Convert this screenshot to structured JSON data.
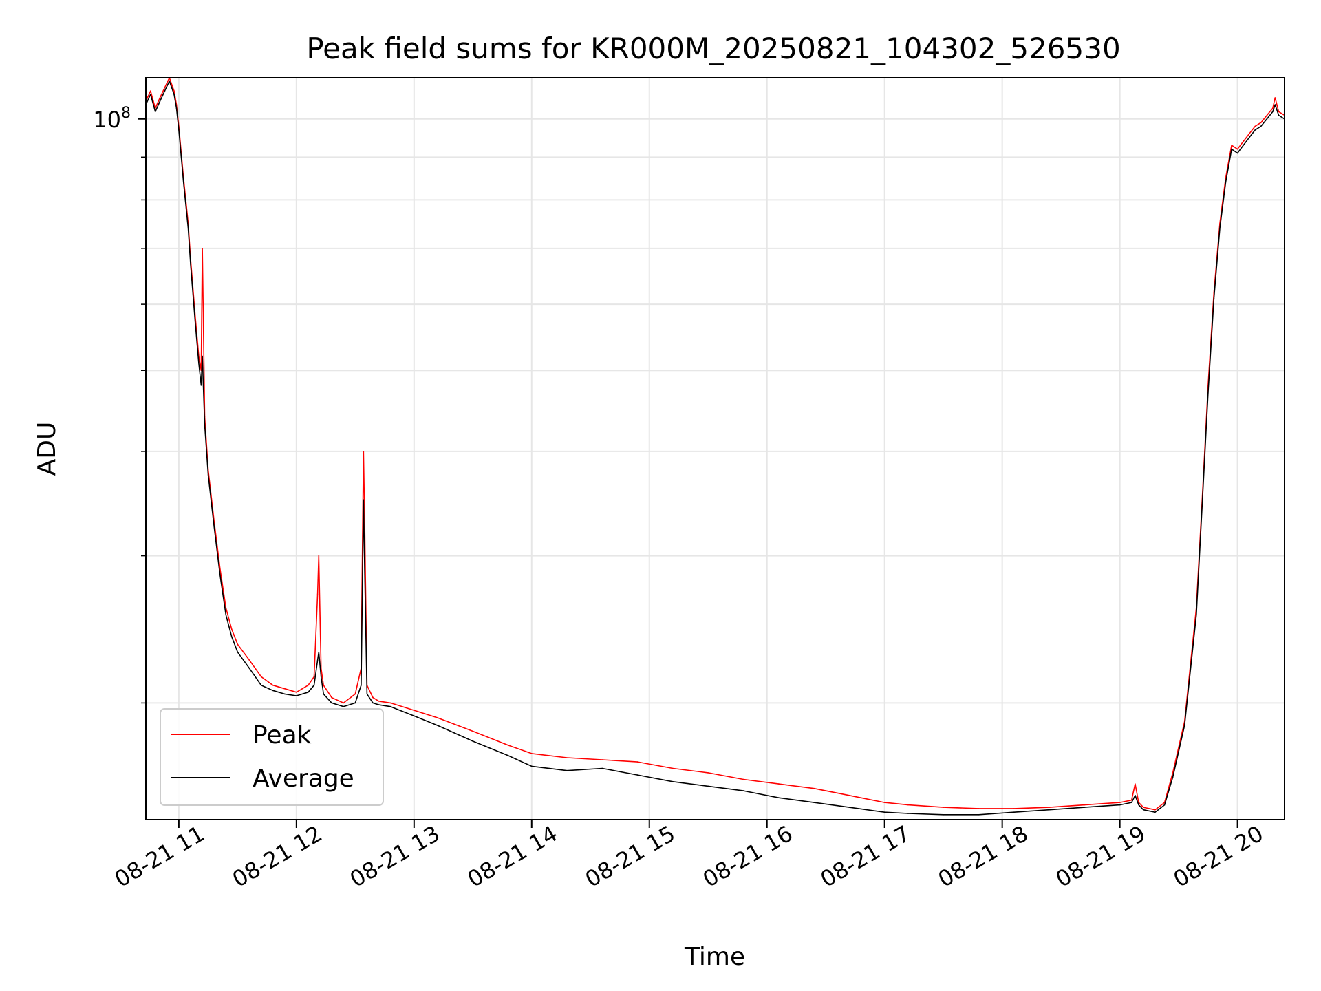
{
  "chart_data": {
    "type": "line",
    "title": "Peak field sums for KR000M_20250821_104302_526530",
    "xlabel": "Time",
    "ylabel": "ADU",
    "x_unit": "hour of 2025-08-21",
    "xlim": [
      10.72,
      20.4
    ],
    "ylim": [
      14500000,
      112000000
    ],
    "yscale": "log",
    "grid": true,
    "legend_position": "lower-left",
    "x_ticks": [
      {
        "value": 11,
        "label": "08-21 11"
      },
      {
        "value": 12,
        "label": "08-21 12"
      },
      {
        "value": 13,
        "label": "08-21 13"
      },
      {
        "value": 14,
        "label": "08-21 14"
      },
      {
        "value": 15,
        "label": "08-21 15"
      },
      {
        "value": 16,
        "label": "08-21 16"
      },
      {
        "value": 17,
        "label": "08-21 17"
      },
      {
        "value": 18,
        "label": "08-21 18"
      },
      {
        "value": 19,
        "label": "08-21 19"
      },
      {
        "value": 20,
        "label": "08-21 20"
      }
    ],
    "y_major_ticks": [
      {
        "value": 100000000,
        "label_base": "10",
        "label_exp": "8"
      }
    ],
    "y_minor_ticks": [
      20000000,
      30000000,
      40000000,
      50000000,
      60000000,
      70000000,
      80000000,
      90000000
    ],
    "series": [
      {
        "name": "Peak",
        "color": "#ff0000",
        "x": [
          10.72,
          10.76,
          10.8,
          10.84,
          10.88,
          10.92,
          10.96,
          10.98,
          11.0,
          11.04,
          11.08,
          11.1,
          11.14,
          11.17,
          11.19,
          11.2,
          11.22,
          11.25,
          11.3,
          11.35,
          11.4,
          11.45,
          11.5,
          11.55,
          11.6,
          11.65,
          11.7,
          11.8,
          11.9,
          12.0,
          12.1,
          12.15,
          12.18,
          12.19,
          12.21,
          12.23,
          12.3,
          12.4,
          12.5,
          12.55,
          12.57,
          12.58,
          12.6,
          12.65,
          12.7,
          12.8,
          13.0,
          13.2,
          13.5,
          13.8,
          14.0,
          14.3,
          14.6,
          14.9,
          15.2,
          15.5,
          15.8,
          16.1,
          16.4,
          16.7,
          17.0,
          17.2,
          17.5,
          17.8,
          18.1,
          18.4,
          18.7,
          19.0,
          19.1,
          19.13,
          19.16,
          19.2,
          19.3,
          19.38,
          19.45,
          19.55,
          19.65,
          19.7,
          19.75,
          19.8,
          19.85,
          19.9,
          19.95,
          20.0,
          20.05,
          20.1,
          20.15,
          20.2,
          20.25,
          20.3,
          20.32,
          20.35,
          20.4
        ],
        "y": [
          105000000,
          108000000,
          103000000,
          106000000,
          109000000,
          112000000,
          108000000,
          104000000,
          98000000,
          85000000,
          75000000,
          68000000,
          58000000,
          52000000,
          50000000,
          70000000,
          44000000,
          38000000,
          33000000,
          29000000,
          26000000,
          24500000,
          23500000,
          23000000,
          22500000,
          22000000,
          21500000,
          21000000,
          20800000,
          20600000,
          21000000,
          21500000,
          27000000,
          30000000,
          22000000,
          21000000,
          20300000,
          20000000,
          20500000,
          22000000,
          40000000,
          33000000,
          21000000,
          20300000,
          20100000,
          20000000,
          19600000,
          19200000,
          18500000,
          17800000,
          17400000,
          17200000,
          17100000,
          17000000,
          16700000,
          16500000,
          16200000,
          16000000,
          15800000,
          15500000,
          15200000,
          15100000,
          15000000,
          14950000,
          14950000,
          15000000,
          15100000,
          15200000,
          15300000,
          16000000,
          15200000,
          15000000,
          14900000,
          15200000,
          16500000,
          19000000,
          26000000,
          35000000,
          48000000,
          62000000,
          75000000,
          85000000,
          93000000,
          92000000,
          94000000,
          96000000,
          98000000,
          99000000,
          101000000,
          103000000,
          106000000,
          102000000,
          101000000
        ]
      },
      {
        "name": "Average",
        "color": "#000000",
        "x": [
          10.72,
          10.76,
          10.8,
          10.84,
          10.88,
          10.92,
          10.96,
          10.98,
          11.0,
          11.04,
          11.08,
          11.1,
          11.14,
          11.17,
          11.19,
          11.2,
          11.22,
          11.25,
          11.3,
          11.35,
          11.4,
          11.45,
          11.5,
          11.55,
          11.6,
          11.65,
          11.7,
          11.8,
          11.9,
          12.0,
          12.1,
          12.15,
          12.18,
          12.19,
          12.21,
          12.23,
          12.3,
          12.4,
          12.5,
          12.55,
          12.57,
          12.58,
          12.6,
          12.65,
          12.7,
          12.8,
          13.0,
          13.2,
          13.5,
          13.8,
          14.0,
          14.3,
          14.6,
          14.9,
          15.2,
          15.5,
          15.8,
          16.1,
          16.4,
          16.7,
          17.0,
          17.2,
          17.5,
          17.8,
          18.1,
          18.4,
          18.7,
          19.0,
          19.1,
          19.13,
          19.16,
          19.2,
          19.3,
          19.38,
          19.45,
          19.55,
          19.65,
          19.7,
          19.75,
          19.8,
          19.85,
          19.9,
          19.95,
          20.0,
          20.05,
          20.1,
          20.15,
          20.2,
          20.25,
          20.3,
          20.32,
          20.35,
          20.4
        ],
        "y": [
          104000000,
          107000000,
          102000000,
          105000000,
          108000000,
          111000000,
          107000000,
          103000000,
          97000000,
          84000000,
          74000000,
          67000000,
          57000000,
          51000000,
          48000000,
          52000000,
          43000000,
          37500000,
          32500000,
          28500000,
          25500000,
          24000000,
          23000000,
          22500000,
          22000000,
          21500000,
          21000000,
          20700000,
          20500000,
          20400000,
          20600000,
          21000000,
          22500000,
          23000000,
          21500000,
          20500000,
          20000000,
          19800000,
          20000000,
          21000000,
          35000000,
          29000000,
          20500000,
          20000000,
          19900000,
          19800000,
          19300000,
          18800000,
          18000000,
          17300000,
          16800000,
          16600000,
          16700000,
          16400000,
          16100000,
          15900000,
          15700000,
          15400000,
          15200000,
          15000000,
          14800000,
          14750000,
          14700000,
          14700000,
          14800000,
          14900000,
          15000000,
          15100000,
          15200000,
          15500000,
          15100000,
          14900000,
          14800000,
          15100000,
          16300000,
          18800000,
          25500000,
          34500000,
          47000000,
          61000000,
          74000000,
          84000000,
          92000000,
          91000000,
          93000000,
          95000000,
          97000000,
          98000000,
          100000000,
          102000000,
          104000000,
          101000000,
          100000000
        ]
      }
    ]
  }
}
